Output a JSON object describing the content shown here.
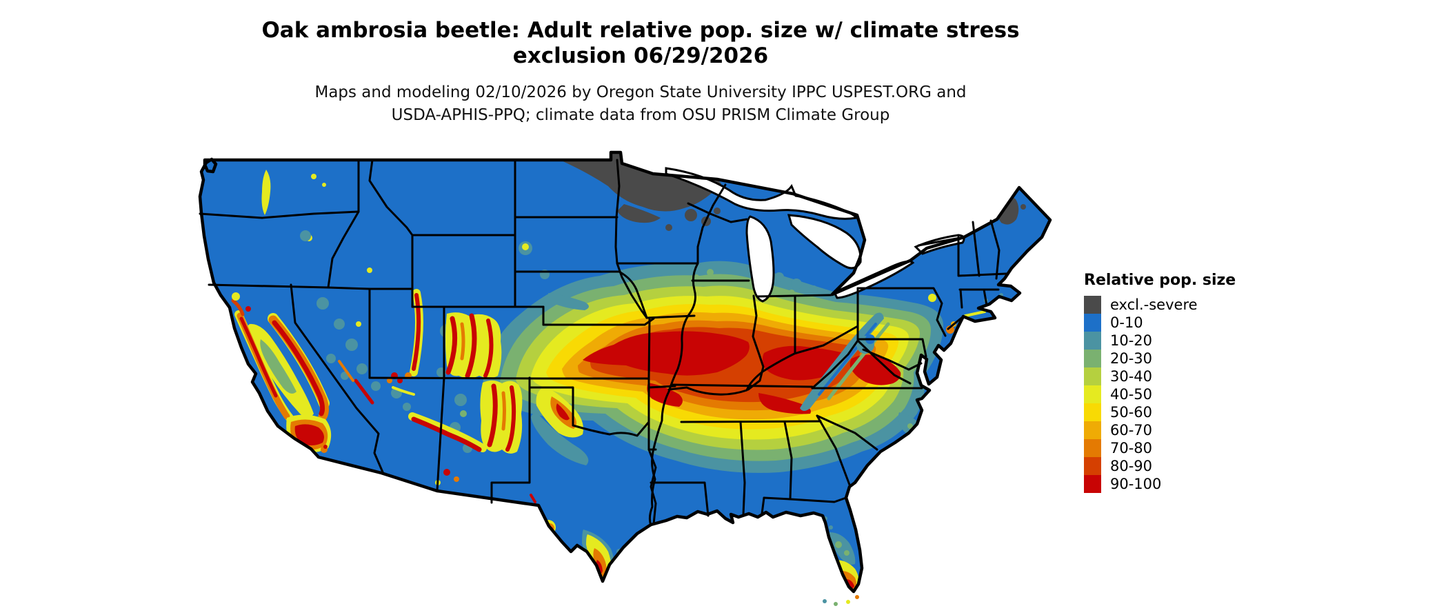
{
  "title": {
    "line1": "Oak ambrosia beetle: Adult relative pop. size w/ climate stress",
    "line2": "exclusion 06/29/2026"
  },
  "subtitle": {
    "line1": "Maps and modeling 02/10/2026 by Oregon State University IPPC USPEST.ORG and",
    "line2": "USDA-APHIS-PPQ; climate data from OSU PRISM Climate Group"
  },
  "legend": {
    "title": "Relative pop. size",
    "items": [
      {
        "key": "excl",
        "label": "excl.-severe",
        "color": "#4a4a4a"
      },
      {
        "key": "b0",
        "label": "0-10",
        "color": "#1d70c8"
      },
      {
        "key": "b10",
        "label": "10-20",
        "color": "#4b93a2"
      },
      {
        "key": "b20",
        "label": "20-30",
        "color": "#7ab170"
      },
      {
        "key": "b30",
        "label": "30-40",
        "color": "#b5d03f"
      },
      {
        "key": "b40",
        "label": "40-50",
        "color": "#e5ea20"
      },
      {
        "key": "b50",
        "label": "50-60",
        "color": "#f8da04"
      },
      {
        "key": "b60",
        "label": "60-70",
        "color": "#efab05"
      },
      {
        "key": "b70",
        "label": "70-80",
        "color": "#e47a02"
      },
      {
        "key": "b80",
        "label": "80-90",
        "color": "#d54001"
      },
      {
        "key": "b90",
        "label": "90-100",
        "color": "#c80404"
      }
    ]
  },
  "map_data": {
    "type": "choropleth-raster",
    "region": "Contiguous United States with state boundaries",
    "variable": "Adult relative population size (0-100) with climate stress exclusion",
    "date_shown": "06/29/2026",
    "classes": [
      "excl.-severe",
      "0-10",
      "10-20",
      "20-30",
      "30-40",
      "40-50",
      "50-60",
      "60-70",
      "70-80",
      "80-90",
      "90-100"
    ],
    "patterns": [
      {
        "area": "Northern Minnesota, northeastern North Dakota strip, far-northern Wisconsin, northwestern Maine",
        "class": "excl.-severe"
      },
      {
        "area": "Pacific Northwest, northern Rockies, northern plains, Great Lakes north, New England, Texas, Gulf Coast, coastal plain Southeast",
        "class": "0-10"
      },
      {
        "area": "Core belt from central Kansas and Missouri through southern Illinois/Indiana, Kentucky, Tennessee to central Virginia",
        "class": "80-100"
      },
      {
        "area": "Concentric transition rings (Nebraska, Iowa, Illinois, Ohio, southern Pennsylvania, New Jersey, Oklahoma, Arkansas, northern Mississippi/Alabama/Georgia)",
        "class": "10-70 gradient"
      },
      {
        "area": "California Central Valley rim, Sierra Nevada, Coast Ranges, Wasatch, Colorado and New Mexico ranges, Mogollon Rim",
        "class": "60-100 mountain ridges"
      },
      {
        "area": "South Texas tip, southern Florida, Chesapeake/Delmarva and New Jersey shore",
        "class": "40-90"
      },
      {
        "area": "Appalachian ridge from Pennsylvania through West Virginia to western North Carolina",
        "class": "0-30 cool corridor inside warm belt"
      }
    ]
  }
}
